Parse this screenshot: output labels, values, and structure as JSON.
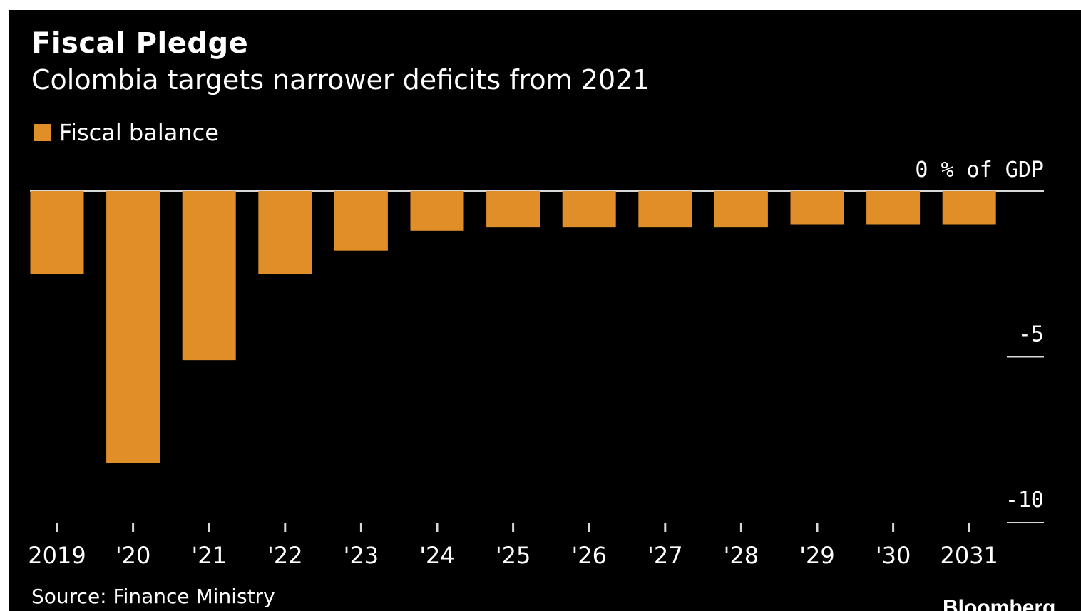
{
  "chart_data": {
    "type": "bar",
    "title": "Fiscal Pledge",
    "subtitle": "Colombia targets narrower deficits from 2021",
    "categories": [
      "2019",
      "'20",
      "'21",
      "'22",
      "'23",
      "'24",
      "'25",
      "'26",
      "'27",
      "'28",
      "'29",
      "'30",
      "2031"
    ],
    "series": [
      {
        "name": "Fiscal balance",
        "color": "#E08E27",
        "values": [
          -2.5,
          -8.2,
          -5.1,
          -2.5,
          -1.8,
          -1.2,
          -1.1,
          -1.1,
          -1.1,
          -1.1,
          -1.0,
          -1.0,
          -1.0
        ]
      }
    ],
    "y_ticks": [
      {
        "value": 0,
        "label": "0 % of GDP"
      },
      {
        "value": -5,
        "label": "-5"
      },
      {
        "value": -10,
        "label": "-10"
      }
    ],
    "ylim": [
      -10,
      0
    ],
    "y_axis_side": "right",
    "legend_position": "top-left",
    "source": "Source: Finance Ministry",
    "brand": "Bloomberg"
  }
}
